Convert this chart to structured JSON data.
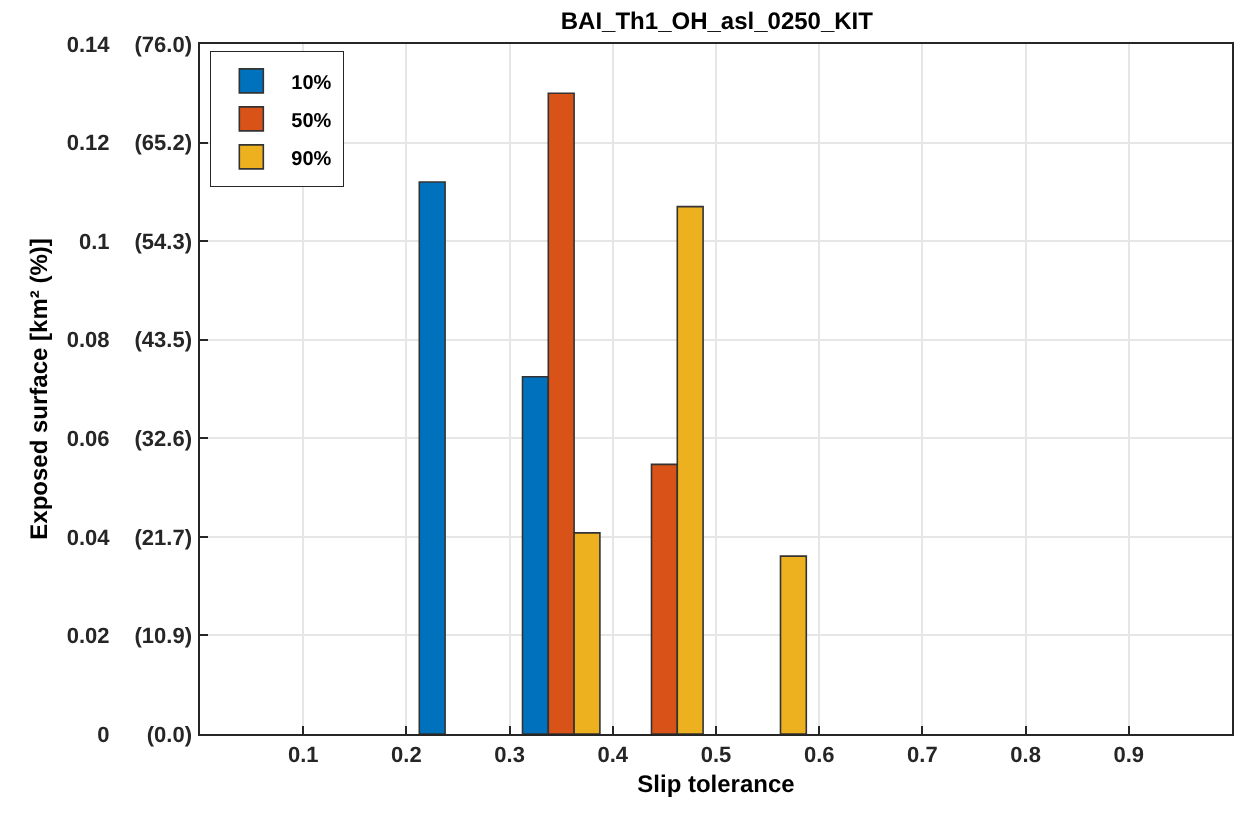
{
  "chart_data": {
    "type": "bar",
    "title": "BAI_Th1_OH_asl_0250_KIT",
    "xlabel": "Slip tolerance",
    "ylabel": "Exposed surface [km² (%)]",
    "x": [
      0.25,
      0.35,
      0.45,
      0.55
    ],
    "series": [
      {
        "name": "10%",
        "color": "#0072bd",
        "values": [
          0.112,
          0.0725,
          null,
          null
        ]
      },
      {
        "name": "50%",
        "color": "#d95319",
        "values": [
          null,
          0.13,
          0.0547,
          null
        ]
      },
      {
        "name": "90%",
        "color": "#edb120",
        "values": [
          null,
          0.0408,
          0.107,
          0.0361
        ]
      }
    ],
    "xlim": [
      0,
      1
    ],
    "xticks": [
      0.1,
      0.2,
      0.3,
      0.4,
      0.5,
      0.6,
      0.7,
      0.8,
      0.9
    ],
    "ylim": [
      0,
      0.14
    ],
    "yticks": [
      0,
      0.02,
      0.04,
      0.06,
      0.08,
      0.1,
      0.12,
      0.14
    ],
    "y2lim": [
      0,
      76.0
    ],
    "y2ticks": [
      {
        "value": 0,
        "label": "(0.0)"
      },
      {
        "value": 10.9,
        "label": "(10.9)"
      },
      {
        "value": 21.7,
        "label": "(21.7)"
      },
      {
        "value": 32.6,
        "label": "(32.6)"
      },
      {
        "value": 43.5,
        "label": "(43.5)"
      },
      {
        "value": 54.3,
        "label": "(54.3)"
      },
      {
        "value": 65.2,
        "label": "(65.2)"
      },
      {
        "value": 76.0,
        "label": "(76.0)"
      }
    ],
    "grid": true,
    "legend": "top left"
  }
}
